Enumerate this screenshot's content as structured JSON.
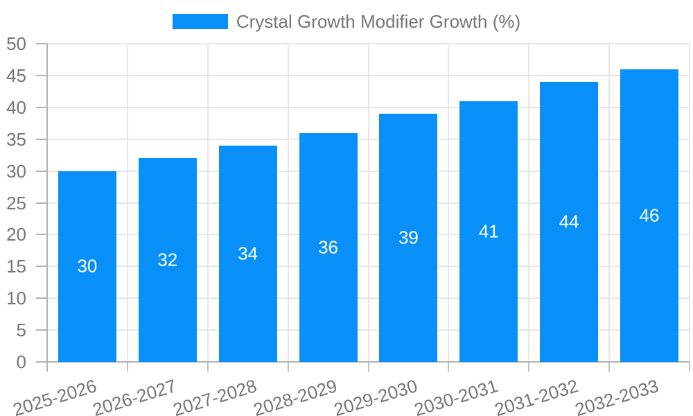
{
  "chart_data": {
    "type": "bar",
    "title": "Crystal Growth Modifier Growth (%)",
    "categories": [
      "2025-2026",
      "2026-2027",
      "2027-2028",
      "2028-2029",
      "2029-2030",
      "2030-2031",
      "2031-2032",
      "2032-2033"
    ],
    "values": [
      30,
      32,
      34,
      36,
      39,
      41,
      44,
      46
    ],
    "series_name": "Crystal Growth Modifier Growth (%)",
    "ylim": [
      0,
      50
    ],
    "ytick_step": 5,
    "yticks": [
      0,
      5,
      10,
      15,
      20,
      25,
      30,
      35,
      40,
      45,
      50
    ],
    "grid": true,
    "legend_position": "top",
    "bar_value_labels": [
      30,
      32,
      34,
      36,
      39,
      41,
      44,
      46
    ],
    "colors": {
      "bar": "#0990f8",
      "bar_label": "#ffffff",
      "axis_text": "#757575",
      "gridline": "#e6e6e6",
      "axis_line": "#b3b3b3",
      "tick_mark": "#c2c2c2",
      "background": "#ffffff"
    }
  }
}
